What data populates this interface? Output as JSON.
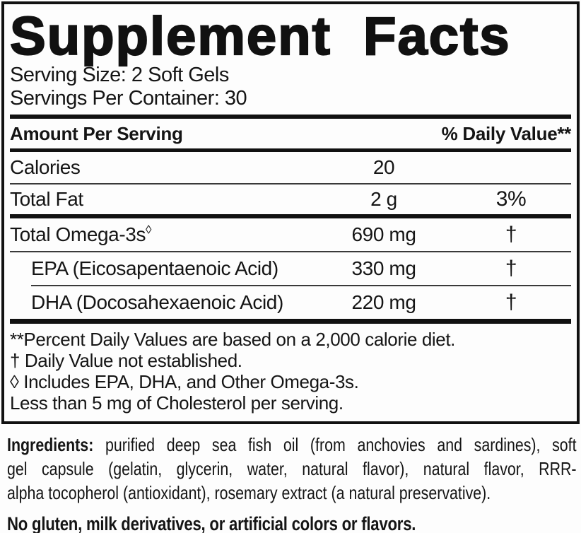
{
  "colors": {
    "ink": "#111111",
    "background": "#fdfdfd"
  },
  "title": "Supplement Facts",
  "serving": {
    "serving_size": "Serving Size: 2 Soft Gels",
    "servings_per_container": "Servings Per Container: 30"
  },
  "table": {
    "header": {
      "left": "Amount Per Serving",
      "right": "% Daily Value**"
    },
    "rows": [
      {
        "name": "Calories",
        "amount": "20",
        "dv": ""
      },
      {
        "name": "Total Fat",
        "amount": "2 g",
        "dv": "3%"
      },
      {
        "name": "Total Omega-3s",
        "name_sup": "◊",
        "amount": "690 mg",
        "dv": "†"
      },
      {
        "name": "EPA (Eicosapentaenoic Acid)",
        "amount": "330 mg",
        "dv": "†"
      },
      {
        "name": "DHA (Docosahexaenoic Acid)",
        "amount": "220 mg",
        "dv": "†"
      }
    ]
  },
  "footnotes": [
    "**Percent Daily Values are based on a 2,000 calorie diet.",
    "† Daily Value not established.",
    "◊ Includes EPA, DHA, and Other Omega-3s.",
    "Less than 5 mg of Cholesterol per serving."
  ],
  "ingredients": {
    "label": "Ingredients:",
    "line1_rest": " purified deep sea fish oil (from anchovies and sardines), soft",
    "line2": "gel capsule (gelatin, glycerin, water, natural flavor), natural flavor, RRR-",
    "line3": "alpha tocopherol (antioxidant), rosemary extract (a natural preservative)."
  },
  "allergen_statement": "No gluten, milk derivatives, or artificial colors or flavors."
}
